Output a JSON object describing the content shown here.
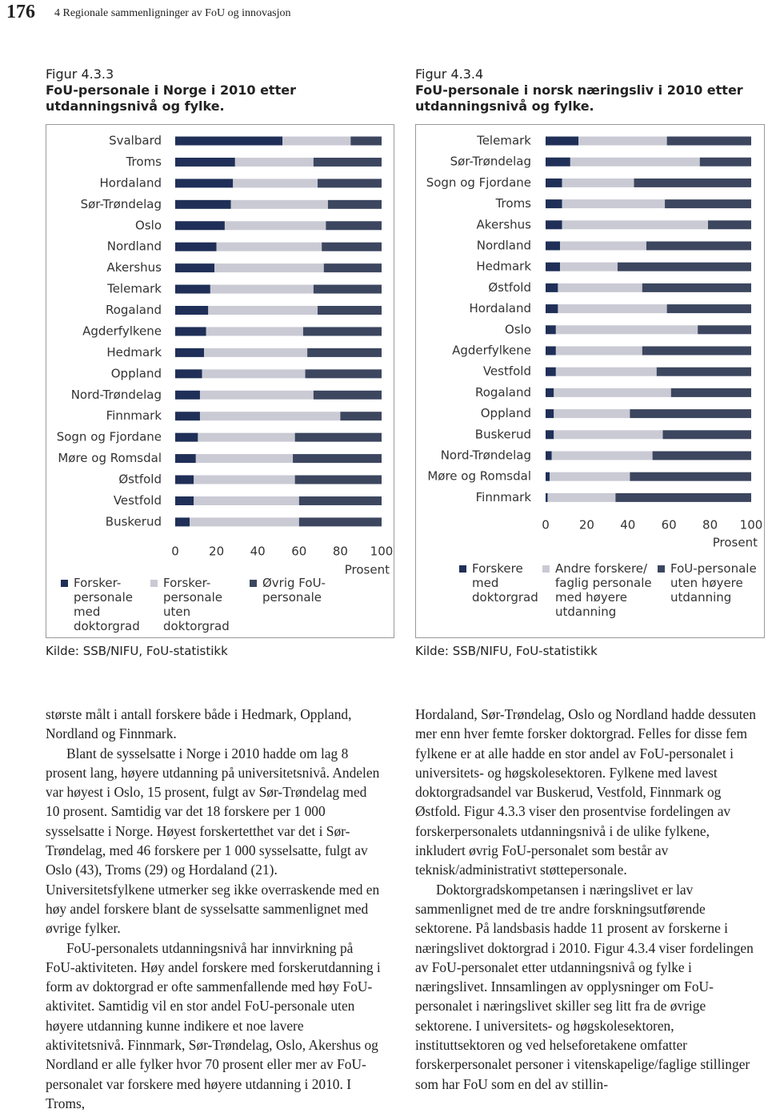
{
  "header": {
    "page_number": "176",
    "running_title": "4 Regionale sammenligninger av FoU og innovasjon"
  },
  "chart_data": [
    {
      "type": "bar",
      "orientation": "horizontal",
      "stacked": true,
      "figure_label": "Figur 4.3.3",
      "title": "FoU-personale i Norge i 2010 etter utdanningsnivå og fylke.",
      "source": "Kilde: SSB/NIFU, FoU-statistikk",
      "xlabel": "Prosent",
      "xlim": [
        0,
        100
      ],
      "xticks": [
        0,
        20,
        40,
        60,
        80,
        100
      ],
      "categories": [
        "Svalbard",
        "Troms",
        "Hordaland",
        "Sør-Trøndelag",
        "Oslo",
        "Nordland",
        "Akershus",
        "Telemark",
        "Rogaland",
        "Agderfylkene",
        "Hedmark",
        "Oppland",
        "Nord-Trøndelag",
        "Finnmark",
        "Sogn og Fjordane",
        "Møre og Romsdal",
        "Østfold",
        "Vestfold",
        "Buskerud"
      ],
      "series": [
        {
          "name": "Forsker- personale med doktorgrad",
          "color": "#1f2f57",
          "values": [
            52,
            29,
            28,
            27,
            24,
            20,
            19,
            17,
            16,
            15,
            14,
            13,
            12,
            12,
            11,
            10,
            9,
            9,
            7
          ]
        },
        {
          "name": "Forsker- personale uten doktorgrad",
          "color": "#c9cad4",
          "values": [
            33,
            38,
            41,
            47,
            49,
            51,
            53,
            50,
            53,
            47,
            50,
            50,
            55,
            68,
            47,
            47,
            49,
            51,
            53
          ]
        },
        {
          "name": "Øvrig FoU- personale",
          "color": "#3c465f",
          "values": [
            15,
            33,
            31,
            26,
            27,
            29,
            28,
            33,
            31,
            38,
            36,
            37,
            33,
            20,
            42,
            43,
            42,
            40,
            40
          ]
        }
      ]
    },
    {
      "type": "bar",
      "orientation": "horizontal",
      "stacked": true,
      "figure_label": "Figur 4.3.4",
      "title": "FoU-personale i norsk næringsliv i 2010 etter utdanningsnivå og fylke.",
      "source": "Kilde: SSB/NIFU, FoU-statistikk",
      "xlabel": "Prosent",
      "xlim": [
        0,
        100
      ],
      "xticks": [
        0,
        20,
        40,
        60,
        80,
        100
      ],
      "categories": [
        "Telemark",
        "Sør-Trøndelag",
        "Sogn og Fjordane",
        "Troms",
        "Akershus",
        "Nordland",
        "Hedmark",
        "Østfold",
        "Hordaland",
        "Oslo",
        "Agderfylkene",
        "Vestfold",
        "Rogaland",
        "Oppland",
        "Buskerud",
        "Nord-Trøndelag",
        "Møre og Romsdal",
        "Finnmark"
      ],
      "series": [
        {
          "name": "Forskere med doktorgrad",
          "color": "#1f2f57",
          "values": [
            16,
            12,
            8,
            8,
            8,
            7,
            7,
            6,
            6,
            5,
            5,
            5,
            4,
            4,
            4,
            3,
            2,
            1
          ]
        },
        {
          "name": "Andre forskere/ faglig personale med høyere utdanning",
          "color": "#c9cad4",
          "values": [
            43,
            63,
            35,
            50,
            71,
            42,
            28,
            41,
            53,
            69,
            42,
            49,
            57,
            37,
            53,
            49,
            39,
            33
          ]
        },
        {
          "name": "FoU-personale uten høyere utdanning",
          "color": "#3c465f",
          "values": [
            41,
            25,
            57,
            42,
            21,
            51,
            65,
            53,
            41,
            26,
            53,
            46,
            39,
            59,
            43,
            48,
            59,
            66
          ]
        }
      ]
    }
  ],
  "body": {
    "columns": [
      [
        "største målt i antall forskere både i Hedmark, Oppland, Nordland og Finnmark.",
        "Blant de sysselsatte i Norge i 2010 hadde om lag 8 prosent lang, høyere utdanning på universitetsnivå. Andelen var høyest i Oslo, 15 prosent, fulgt av Sør-Trøndelag med 10 prosent. Samtidig var det 18 forskere per 1 000 sysselsatte i Norge. Høyest forskertetthet var det i Sør-Trøndelag, med 46 forskere per 1 000 sysselsatte, fulgt av Oslo (43), Troms (29) og Hordaland (21). Universitetsfylkene utmerker seg ikke overraskende med en høy andel forskere blant de sysselsatte sammenlignet med øvrige fylker.",
        "FoU-personalets utdanningsnivå har innvirkning på FoU-aktiviteten. Høy andel forskere med forskerutdanning i form av doktorgrad er ofte sammenfallende med høy FoU-aktivitet. Samtidig vil en stor andel FoU-personale uten høyere utdanning kunne indikere et noe lavere aktivitetsnivå. Finnmark, Sør-Trøndelag, Oslo, Akershus og Nordland er alle fylker hvor 70 prosent eller mer av FoU-personalet var forskere med høyere utdanning i 2010. I Troms,"
      ],
      [
        "Hordaland, Sør-Trøndelag, Oslo og Nordland hadde dessuten mer enn hver femte forsker doktorgrad. Felles for disse fem fylkene er at alle hadde en stor andel av FoU-personalet i universitets- og høgskolesektoren. Fylkene med lavest doktorgradsandel var Buskerud, Vestfold, Finnmark og Østfold. Figur 4.3.3 viser den prosentvise fordelingen av forskerpersonalets utdanningsnivå i de ulike fylkene, inkludert øvrig FoU-personalet som består av teknisk/administrativt støttepersonale.",
        "Doktorgradskompetansen i næringslivet er lav sammenlignet med de tre andre forskningsutførende sektorene. På landsbasis hadde 11 prosent av forskerne i næringslivet doktorgrad i 2010. Figur 4.3.4 viser fordelingen av FoU-personalet etter utdanningsnivå og fylke i næringslivet. Innsamlingen av opplysninger om FoU-personalet i næringslivet skiller seg litt fra de øvrige sektorene. I universitets- og høgskolesektoren, instituttsektoren og ved helseforetakene omfatter forskerpersonalet personer i vitenskapelige/faglige stillinger som har FoU som en del av stillin-"
      ]
    ]
  }
}
